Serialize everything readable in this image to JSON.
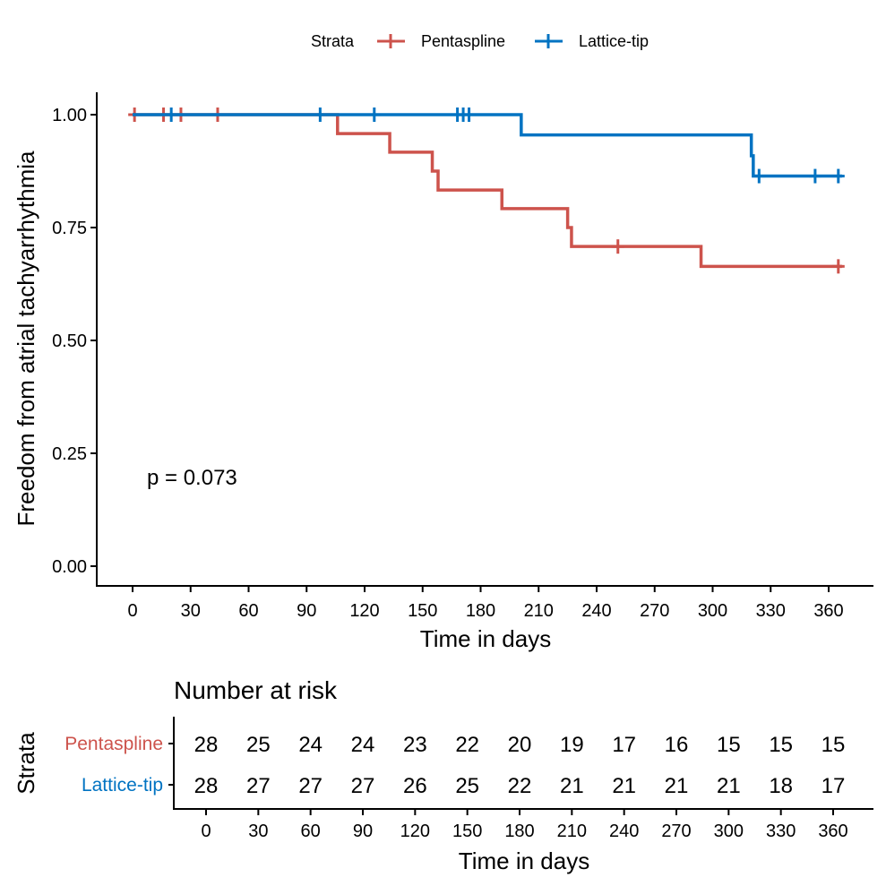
{
  "chart_data": {
    "type": "line",
    "subtype": "kaplan-meier",
    "title": "",
    "xlabel": "Time in days",
    "ylabel": "Freedom from atrial tachyarrhythmia",
    "xlim": [
      0,
      367
    ],
    "ylim": [
      0,
      1
    ],
    "x_ticks": [
      0,
      30,
      60,
      90,
      120,
      150,
      180,
      210,
      240,
      270,
      300,
      330,
      360
    ],
    "y_ticks": [
      "0.00",
      "0.25",
      "0.50",
      "0.75",
      "1.00"
    ],
    "y_tick_values": [
      0,
      0.25,
      0.5,
      0.75,
      1.0
    ],
    "grid": false,
    "legend": {
      "title": "Strata",
      "placement": "top",
      "entries": [
        "Pentaspline",
        "Lattice-tip"
      ]
    },
    "annotation": "p = 0.073",
    "series": [
      {
        "name": "Pentaspline",
        "color": "#CD534C",
        "steps": [
          {
            "time": 0,
            "survival": 1.0
          },
          {
            "time": 106,
            "survival": 0.958
          },
          {
            "time": 133,
            "survival": 0.917
          },
          {
            "time": 155,
            "survival": 0.875
          },
          {
            "time": 158,
            "survival": 0.833
          },
          {
            "time": 191,
            "survival": 0.792
          },
          {
            "time": 225,
            "survival": 0.75
          },
          {
            "time": 227,
            "survival": 0.708
          },
          {
            "time": 294,
            "survival": 0.664
          }
        ],
        "end_time": 367,
        "censor_times": [
          1,
          16,
          25,
          44,
          251,
          365
        ]
      },
      {
        "name": "Lattice-tip",
        "color": "#0073C2",
        "steps": [
          {
            "time": 0,
            "survival": 1.0
          },
          {
            "time": 201,
            "survival": 0.955
          },
          {
            "time": 320,
            "survival": 0.909
          },
          {
            "time": 321,
            "survival": 0.864
          }
        ],
        "end_time": 367,
        "censor_times": [
          20,
          97,
          125,
          168,
          171,
          174,
          324,
          353,
          365
        ]
      }
    ],
    "risk_table": {
      "title": "Number at risk",
      "ylabel": "Strata",
      "xlabel": "Time in days",
      "times": [
        0,
        30,
        60,
        90,
        120,
        150,
        180,
        210,
        240,
        270,
        300,
        330,
        360
      ],
      "rows": [
        {
          "name": "Pentaspline",
          "color": "#CD534C",
          "values": [
            28,
            25,
            24,
            24,
            23,
            22,
            20,
            19,
            17,
            16,
            15,
            15,
            15
          ]
        },
        {
          "name": "Lattice-tip",
          "color": "#0073C2",
          "values": [
            28,
            27,
            27,
            27,
            26,
            25,
            22,
            21,
            21,
            21,
            21,
            18,
            17
          ]
        }
      ]
    }
  }
}
